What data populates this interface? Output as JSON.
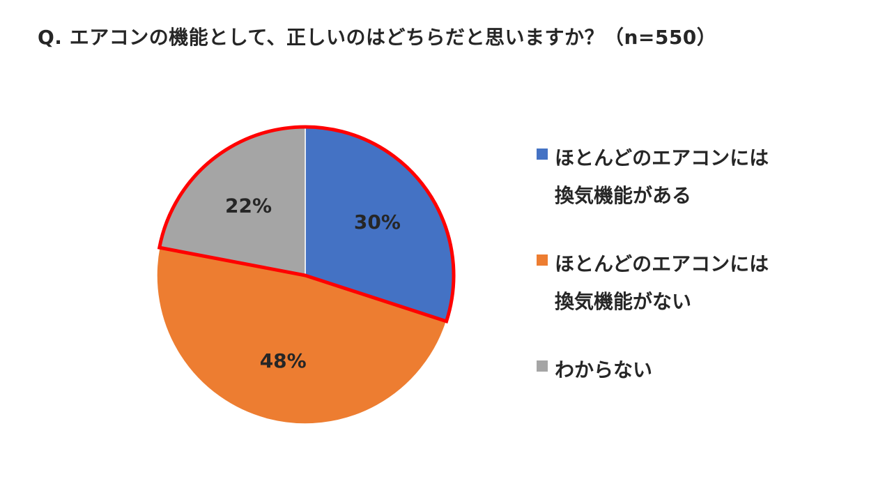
{
  "title": "Q. エアコンの機能として、正しいのはどちらだと思いますか？（n=550）",
  "chart_data": {
    "type": "pie",
    "title": "Q. エアコンの機能として、正しいのはどちらだと思いますか？（n=550）",
    "categories": [
      "ほとんどのエアコンには換気機能がある",
      "ほとんどのエアコンには換気機能がない",
      "わからない"
    ],
    "values": [
      30,
      48,
      22
    ],
    "data_labels": [
      "30%",
      "48%",
      "22%"
    ],
    "colors": [
      "#4472C4",
      "#ED7D31",
      "#A5A5A5"
    ],
    "highlight_border_color": "#FF0000",
    "highlighted_categories": [
      "ほとんどのエアコンには換気機能がある",
      "わからない"
    ],
    "start_angle": "12 o'clock, clockwise",
    "legend_position": "right"
  },
  "legend": [
    {
      "label": "ほとんどのエアコンには\n換気機能がある",
      "color": "#4472C4"
    },
    {
      "label": "ほとんどのエアコンには\n換気機能がない",
      "color": "#ED7D31"
    },
    {
      "label": "わからない",
      "color": "#A5A5A5"
    }
  ]
}
